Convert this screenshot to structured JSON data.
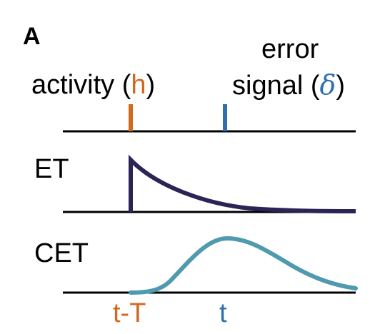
{
  "panel_label": "A",
  "activity": {
    "prefix": "activity (",
    "symbol": "h",
    "suffix": ")"
  },
  "error": {
    "line1": "error",
    "prefix": "signal (",
    "symbol": "δ",
    "suffix": ")"
  },
  "rows": {
    "et": "ET",
    "cet": "CET"
  },
  "ticks": {
    "t_minus_T": "t-T",
    "t": "t"
  },
  "colors": {
    "activity": "#D2691E",
    "error": "#2E6FAF",
    "et_curve": "#2D2456",
    "cet_curve": "#4F9AAE",
    "axis": "#000000"
  }
}
